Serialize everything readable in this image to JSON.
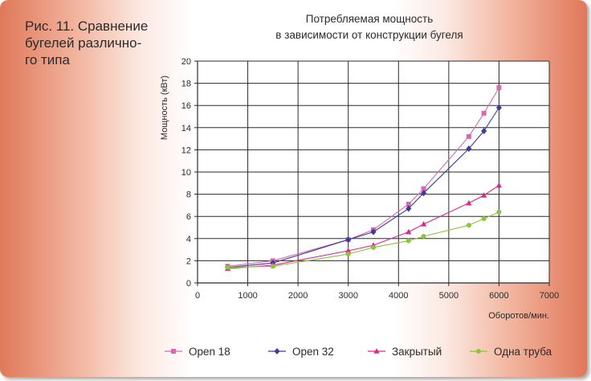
{
  "figure": {
    "caption": "Рис. 11. Сравнение\nбугелей различно-\nго типа"
  },
  "chart_data": {
    "type": "line",
    "title": "Потребляемая мощность\nв зависимости от конструкции бугеля",
    "xlabel": "Оборотов/мин.",
    "ylabel": "Мощность (кВт)",
    "xlim": [
      0,
      7000
    ],
    "ylim": [
      0,
      20
    ],
    "x_ticks": [
      0,
      1000,
      2000,
      3000,
      4000,
      5000,
      6000,
      7000
    ],
    "y_ticks": [
      0,
      2,
      4,
      6,
      8,
      10,
      12,
      14,
      16,
      18,
      20
    ],
    "grid": true,
    "legend_position": "bottom",
    "series": [
      {
        "name": "Open 18",
        "color": "#d868b0",
        "marker": "square",
        "x": [
          600,
          1500,
          3000,
          3500,
          4200,
          4500,
          5400,
          5700,
          6000
        ],
        "y": [
          1.5,
          2.0,
          3.9,
          4.8,
          7.1,
          8.5,
          13.2,
          15.3,
          17.6
        ]
      },
      {
        "name": "Open 32",
        "color": "#3c3c9c",
        "marker": "diamond",
        "x": [
          600,
          1500,
          3000,
          3500,
          4200,
          4500,
          5400,
          5700,
          6000
        ],
        "y": [
          1.4,
          1.8,
          3.9,
          4.6,
          6.7,
          8.1,
          12.1,
          13.7,
          15.8
        ]
      },
      {
        "name": "Закрытый",
        "color": "#e0258c",
        "marker": "triangle",
        "x": [
          600,
          1500,
          3000,
          3500,
          4200,
          4500,
          5400,
          5700,
          6000
        ],
        "y": [
          1.3,
          1.6,
          2.9,
          3.4,
          4.6,
          5.3,
          7.2,
          7.9,
          8.8
        ]
      },
      {
        "name": "Одна труба",
        "color": "#8cc43c",
        "marker": "circle",
        "x": [
          600,
          1500,
          3000,
          3500,
          4200,
          4500,
          5400,
          5700,
          6000
        ],
        "y": [
          1.4,
          1.5,
          2.6,
          3.2,
          3.8,
          4.2,
          5.2,
          5.8,
          6.4
        ]
      }
    ]
  }
}
